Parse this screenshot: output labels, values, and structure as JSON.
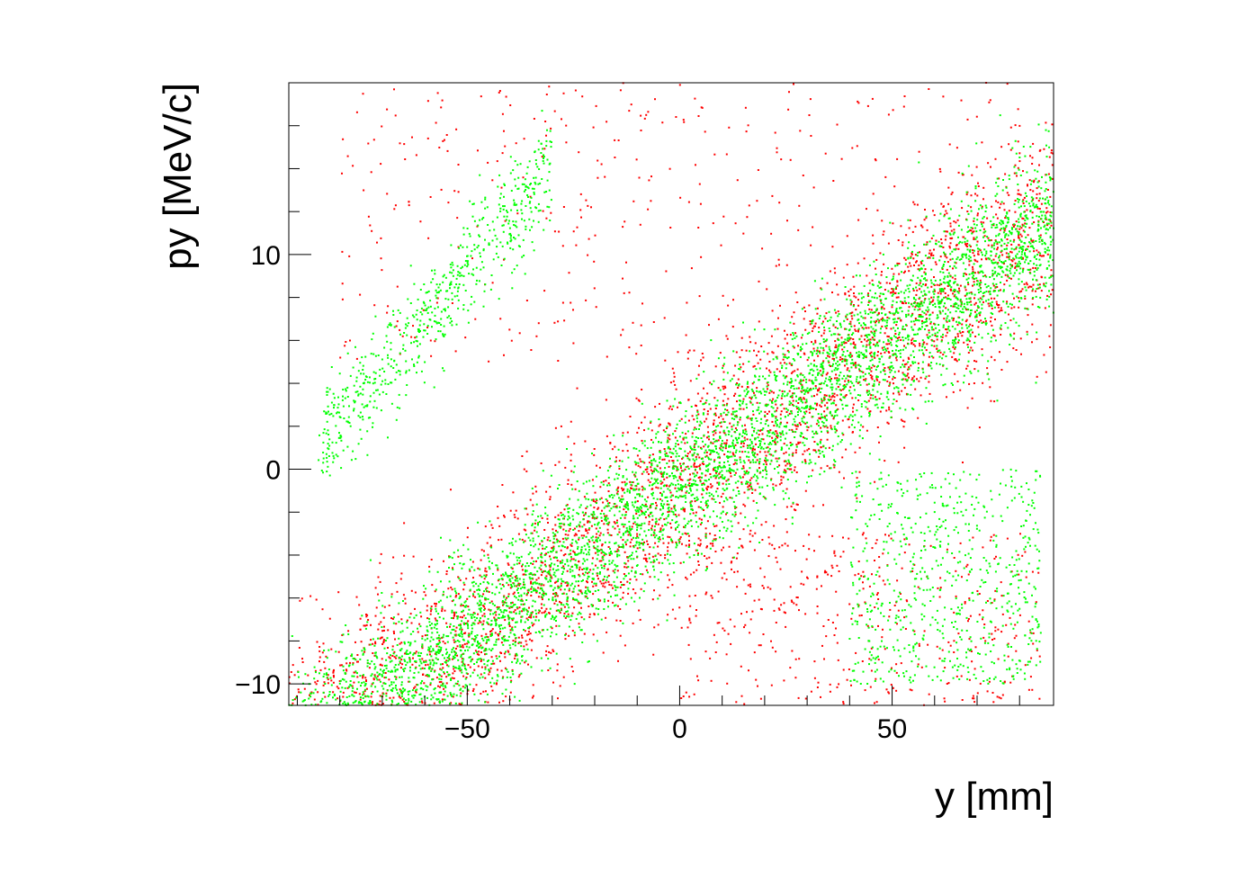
{
  "chart_data": {
    "type": "scatter",
    "title": "",
    "xlabel": "y [mm]",
    "ylabel": "py [MeV/c]",
    "xlim": [
      -92,
      88
    ],
    "ylim": [
      -11,
      18
    ],
    "x_ticks": [
      {
        "value": -50,
        "label": "−50"
      },
      {
        "value": 0,
        "label": "0"
      },
      {
        "value": 50,
        "label": "50"
      }
    ],
    "y_ticks": [
      {
        "value": -10,
        "label": "−10"
      },
      {
        "value": 0,
        "label": "0"
      },
      {
        "value": 10,
        "label": "10"
      }
    ],
    "grid": false,
    "legend": "none",
    "series": [
      {
        "color": "#ff0000",
        "n_points": 4200,
        "core_line": {
          "slope": 0.14,
          "intercept": -0.8
        },
        "core_halfwidth_py": 4.6,
        "core_x_range": [
          -92,
          88
        ],
        "halo": [
          {
            "description": "upper diffuse halo",
            "x_range": [
              -80,
              80
            ],
            "py_range": [
              5,
              18
            ]
          },
          {
            "description": "lower diffuse halo",
            "x_range": [
              0,
              85
            ],
            "py_range": [
              -11,
              -3
            ]
          }
        ]
      },
      {
        "color": "#00ff00",
        "n_points": 6500,
        "core_line": {
          "slope": 0.14,
          "intercept": -0.8
        },
        "core_halfwidth_py": 3.4,
        "core_x_range": [
          -92,
          88
        ],
        "halo": [
          {
            "description": "diagonal finger",
            "x_range": [
              -85,
              -30
            ],
            "py_range": [
              -2,
              18
            ]
          },
          {
            "description": "lower right finger",
            "x_range": [
              40,
              85
            ],
            "py_range": [
              -10,
              0
            ]
          }
        ]
      }
    ]
  }
}
